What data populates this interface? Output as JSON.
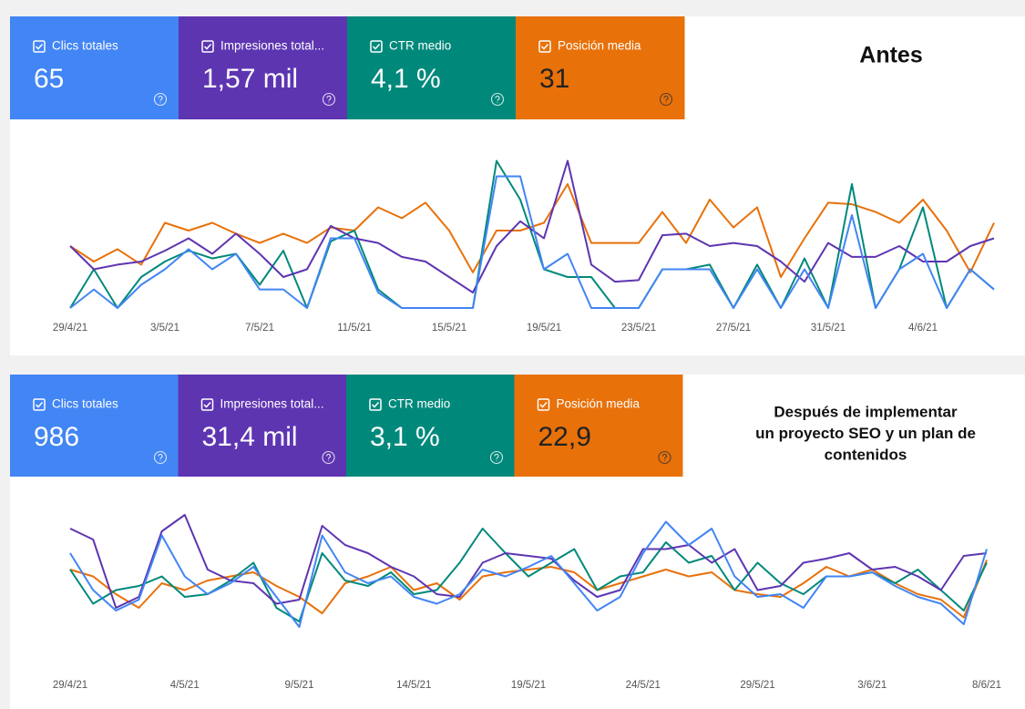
{
  "chart_data": [
    {
      "type": "line",
      "title": [
        "Antes"
      ],
      "categories": [
        "29/4/21",
        null,
        null,
        null,
        "3/5/21",
        null,
        null,
        null,
        "7/5/21",
        null,
        null,
        null,
        "11/5/21",
        null,
        null,
        null,
        "15/5/21",
        null,
        null,
        null,
        "19/5/21",
        null,
        null,
        null,
        "23/5/21",
        null,
        null,
        null,
        "27/5/21",
        null,
        null,
        null,
        "31/5/21",
        null,
        null,
        null,
        "4/6/21",
        null,
        null,
        null
      ],
      "ylim": [
        0,
        100
      ],
      "series": [
        {
          "name": "Clics totales",
          "total": 65,
          "color": "#4285f4",
          "values": [
            0,
            12,
            0,
            15,
            25,
            38,
            25,
            35,
            12,
            12,
            0,
            45,
            45,
            10,
            0,
            0,
            0,
            0,
            85,
            85,
            25,
            35,
            0,
            0,
            0,
            25,
            25,
            25,
            0,
            25,
            0,
            25,
            0,
            60,
            0,
            25,
            35,
            0,
            25,
            12
          ]
        },
        {
          "name": "Impresiones total...",
          "total": "1,57 mil",
          "color": "#5e35b1",
          "values": [
            40,
            25,
            28,
            30,
            37,
            45,
            35,
            48,
            35,
            20,
            25,
            53,
            45,
            42,
            33,
            30,
            20,
            10,
            40,
            56,
            45,
            95,
            28,
            17,
            18,
            47,
            48,
            40,
            42,
            40,
            30,
            17,
            42,
            33,
            33,
            40,
            30,
            30,
            40,
            45
          ]
        },
        {
          "name": "CTR medio",
          "total": "4,1 %",
          "color": "#00897b",
          "values": [
            0,
            25,
            0,
            20,
            30,
            37,
            32,
            35,
            15,
            37,
            0,
            43,
            50,
            12,
            0,
            0,
            0,
            0,
            95,
            70,
            25,
            20,
            20,
            0,
            0,
            25,
            25,
            28,
            0,
            28,
            0,
            32,
            0,
            80,
            0,
            25,
            65,
            0,
            25,
            12
          ]
        },
        {
          "name": "Posición media",
          "total": 31,
          "color": "#e8710a",
          "values": [
            40,
            30,
            38,
            28,
            55,
            50,
            55,
            48,
            42,
            48,
            42,
            52,
            50,
            65,
            58,
            68,
            50,
            23,
            50,
            50,
            55,
            80,
            42,
            42,
            42,
            62,
            42,
            70,
            52,
            65,
            20,
            45,
            68,
            67,
            62,
            55,
            70,
            50,
            23,
            55
          ]
        }
      ]
    },
    {
      "type": "line",
      "title": [
        "Después de implementar",
        "un proyecto SEO y un plan de",
        "contenidos"
      ],
      "categories": [
        "29/4/21",
        null,
        null,
        null,
        null,
        "4/5/21",
        null,
        null,
        null,
        null,
        "9/5/21",
        null,
        null,
        null,
        null,
        "14/5/21",
        null,
        null,
        null,
        null,
        "19/5/21",
        null,
        null,
        null,
        null,
        "24/5/21",
        null,
        null,
        null,
        null,
        "29/5/21",
        null,
        null,
        null,
        null,
        "3/6/21",
        null,
        null,
        null,
        null,
        "8/6/21"
      ],
      "ylim": [
        0,
        100
      ],
      "series": [
        {
          "name": "Clics totales",
          "total": 986,
          "color": "#4285f4",
          "values": [
            62,
            35,
            20,
            28,
            75,
            45,
            32,
            40,
            52,
            30,
            8,
            75,
            48,
            40,
            45,
            30,
            25,
            32,
            50,
            45,
            52,
            60,
            40,
            20,
            30,
            62,
            85,
            68,
            80,
            45,
            30,
            32,
            22,
            45,
            45,
            48,
            38,
            30,
            25,
            10,
            65
          ]
        },
        {
          "name": "Impresiones total...",
          "total": "31,4 mil",
          "color": "#5e35b1",
          "values": [
            80,
            72,
            22,
            30,
            78,
            90,
            50,
            42,
            40,
            25,
            28,
            82,
            68,
            62,
            52,
            45,
            32,
            30,
            55,
            62,
            60,
            58,
            42,
            30,
            35,
            65,
            65,
            68,
            55,
            65,
            35,
            38,
            55,
            58,
            62,
            50,
            52,
            45,
            35,
            60,
            62
          ]
        },
        {
          "name": "CTR medio",
          "total": "3,1 %",
          "color": "#00897b",
          "values": [
            50,
            25,
            35,
            38,
            45,
            30,
            32,
            42,
            55,
            22,
            12,
            62,
            42,
            38,
            48,
            32,
            35,
            55,
            80,
            62,
            45,
            55,
            65,
            35,
            45,
            48,
            70,
            55,
            60,
            35,
            55,
            40,
            32,
            45,
            45,
            48,
            40,
            50,
            35,
            20,
            55
          ]
        },
        {
          "name": "Posición media",
          "total": "22,9",
          "color": "#e8710a",
          "values": [
            50,
            45,
            32,
            22,
            40,
            35,
            42,
            45,
            48,
            38,
            30,
            18,
            40,
            45,
            52,
            35,
            40,
            28,
            45,
            48,
            50,
            52,
            48,
            35,
            40,
            45,
            50,
            45,
            48,
            35,
            32,
            30,
            40,
            52,
            45,
            50,
            40,
            32,
            28,
            15,
            57
          ]
        }
      ]
    }
  ]
}
